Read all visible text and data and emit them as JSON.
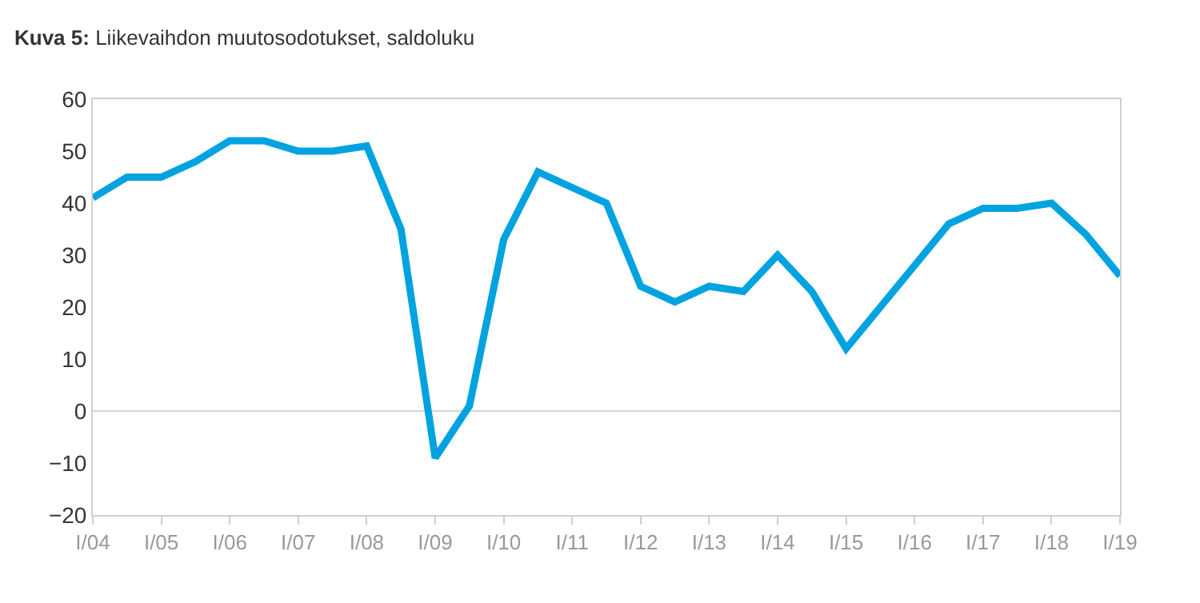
{
  "chart_data": {
    "type": "line",
    "title": "Kuva 5: Liikevaihdon muutosodotukset, saldoluku",
    "categories": [
      "I/04",
      null,
      "I/05",
      null,
      "I/06",
      null,
      "I/07",
      null,
      "I/08",
      null,
      "I/09",
      null,
      "I/10",
      null,
      "I/11",
      null,
      "I/12",
      null,
      "I/13",
      null,
      "I/14",
      null,
      "I/15",
      null,
      "I/16",
      null,
      "I/17",
      null,
      "I/18",
      null,
      "I/19"
    ],
    "series": [
      {
        "color": "#00a3e0",
        "values": [
          41,
          45,
          45,
          48,
          52,
          52,
          50,
          50,
          51,
          35,
          -9,
          1,
          33,
          46,
          43,
          40,
          24,
          21,
          24,
          23,
          30,
          23,
          12,
          20,
          28,
          36,
          39,
          39,
          40,
          34,
          26
        ]
      }
    ],
    "ylim": [
      -20,
      60
    ],
    "yticks": [
      -20,
      -10,
      0,
      10,
      20,
      30,
      40,
      50,
      60
    ],
    "ref_lines": [
      {
        "axis": "y",
        "value": 0,
        "color": "#d9d9d9"
      }
    ],
    "grid": false,
    "marker": "none",
    "line_style": "solid"
  }
}
